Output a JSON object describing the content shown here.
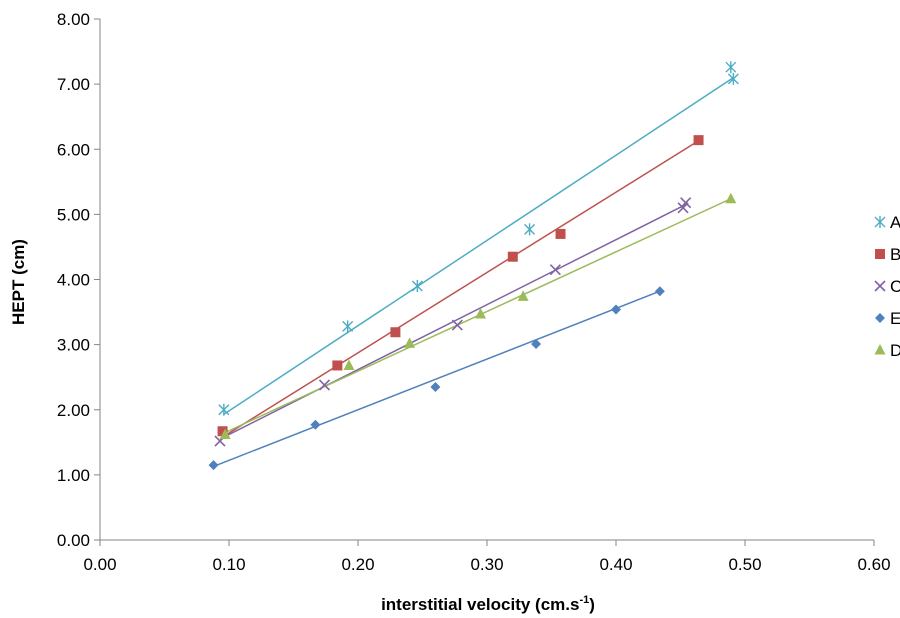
{
  "chart_data": {
    "type": "scatter",
    "title": "",
    "xlabel": "interstitial velocity (cm.s",
    "xlabel_sup": "-1",
    "xlabel_close": ")",
    "ylabel": "HEPT (cm)",
    "xlim": [
      0,
      0.6
    ],
    "ylim": [
      0,
      8
    ],
    "x_ticks": [
      0,
      0.1,
      0.2,
      0.3,
      0.4,
      0.5,
      0.6
    ],
    "y_ticks": [
      0,
      1,
      2,
      3,
      4,
      5,
      6,
      7,
      8
    ],
    "x_tick_labels": [
      "0.00",
      "0.10",
      "0.20",
      "0.30",
      "0.40",
      "0.50",
      "0.60"
    ],
    "y_tick_labels": [
      "0.00",
      "1.00",
      "2.00",
      "3.00",
      "4.00",
      "5.00",
      "6.00",
      "7.00",
      "8.00"
    ],
    "grid": false,
    "legend_position": "right",
    "series": [
      {
        "name": "A",
        "color": "#4BACC6",
        "marker": "asterisk",
        "x": [
          0.096,
          0.192,
          0.246,
          0.333,
          0.489,
          0.491
        ],
        "y": [
          2.0,
          3.28,
          3.9,
          4.77,
          7.26,
          7.08
        ],
        "trend": {
          "x": [
            0.096,
            0.491
          ],
          "y": [
            1.93,
            7.1
          ]
        }
      },
      {
        "name": "B",
        "color": "#C0504D",
        "marker": "square",
        "x": [
          0.095,
          0.184,
          0.229,
          0.32,
          0.357,
          0.464
        ],
        "y": [
          1.67,
          2.68,
          3.19,
          4.35,
          4.7,
          6.14
        ],
        "trend": {
          "x": [
            0.095,
            0.464
          ],
          "y": [
            1.58,
            6.13
          ]
        }
      },
      {
        "name": "C",
        "color": "#8064A2",
        "marker": "cross",
        "x": [
          0.093,
          0.174,
          0.277,
          0.353,
          0.452,
          0.454
        ],
        "y": [
          1.52,
          2.38,
          3.3,
          4.15,
          5.1,
          5.18
        ],
        "trend": {
          "x": [
            0.093,
            0.454
          ],
          "y": [
            1.55,
            5.15
          ]
        }
      },
      {
        "name": "E",
        "color": "#4F81BD",
        "marker": "diamond",
        "x": [
          0.088,
          0.167,
          0.26,
          0.338,
          0.4,
          0.434
        ],
        "y": [
          1.15,
          1.77,
          2.35,
          3.01,
          3.54,
          3.82
        ],
        "trend": {
          "x": [
            0.088,
            0.434
          ],
          "y": [
            1.13,
            3.82
          ]
        }
      },
      {
        "name": "D",
        "color": "#9BBB59",
        "marker": "triangle",
        "x": [
          0.097,
          0.193,
          0.24,
          0.295,
          0.328,
          0.489
        ],
        "y": [
          1.62,
          2.68,
          3.02,
          3.47,
          3.74,
          5.24
        ],
        "trend": {
          "x": [
            0.097,
            0.489
          ],
          "y": [
            1.65,
            5.24
          ]
        }
      }
    ]
  }
}
